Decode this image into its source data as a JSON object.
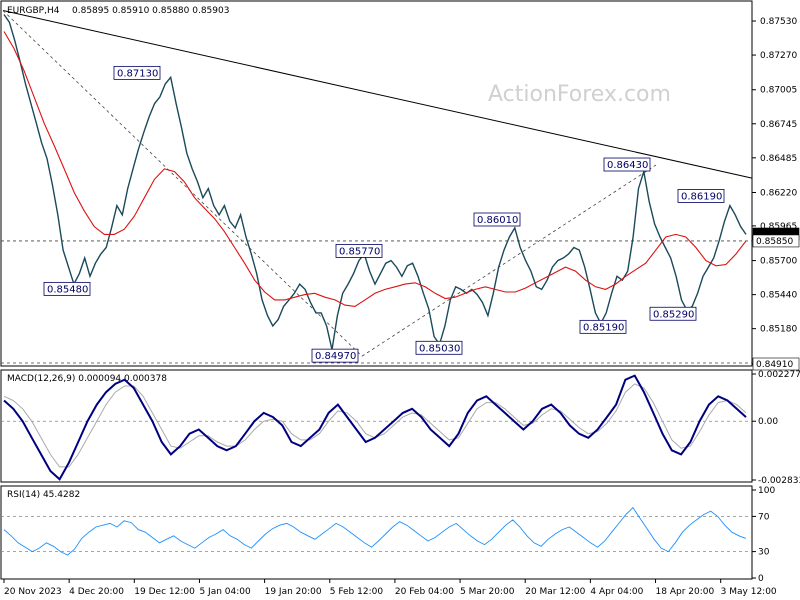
{
  "chart_data": [
    {
      "type": "line",
      "symbol": "EURGBP,H4",
      "ohlc": "0.85895 0.85910 0.85880 0.85903",
      "watermark": "ActionForex.com",
      "x_ticks": [
        "20 Nov 2023",
        "4 Dec 20:00",
        "19 Dec 12:00",
        "5 Jan 04:00",
        "19 Jan 20:00",
        "5 Feb 12:00",
        "20 Feb 04:00",
        "5 Mar 20:00",
        "20 Mar 12:00",
        "4 Apr 04:00",
        "18 Apr 20:00",
        "3 May 12:00"
      ],
      "y_ticks": [
        "0.87530",
        "0.87270",
        "0.87005",
        "0.86745",
        "0.86485",
        "0.86220",
        "0.85965",
        "0.85700",
        "0.85440",
        "0.85180",
        "0.84910"
      ],
      "ylim": [
        0.8491,
        0.8766
      ],
      "current_price": "0.85903",
      "support_level": "0.85850",
      "floor_label": "0.84910",
      "annotations": [
        {
          "label": "0.87130",
          "value": 0.8713
        },
        {
          "label": "0.85480",
          "value": 0.8548
        },
        {
          "label": "0.84970",
          "value": 0.8497
        },
        {
          "label": "0.85770",
          "value": 0.8577
        },
        {
          "label": "0.85030",
          "value": 0.8503
        },
        {
          "label": "0.86010",
          "value": 0.8601
        },
        {
          "label": "0.85190",
          "value": 0.8519
        },
        {
          "label": "0.86430",
          "value": 0.8643
        },
        {
          "label": "0.85290",
          "value": 0.8529
        },
        {
          "label": "0.86190",
          "value": 0.8619
        }
      ],
      "series": [
        {
          "name": "",
          "color": "#1a4a5a",
          "values": [
            0.8758,
            0.8752,
            0.8738,
            0.8722,
            0.8705,
            0.869,
            0.8675,
            0.866,
            0.8648,
            0.8628,
            0.8605,
            0.8578,
            0.8565,
            0.8552,
            0.856,
            0.8572,
            0.8558,
            0.8568,
            0.8575,
            0.858,
            0.8595,
            0.8612,
            0.8605,
            0.8625,
            0.864,
            0.8655,
            0.8668,
            0.868,
            0.869,
            0.8695,
            0.8705,
            0.871,
            0.869,
            0.8672,
            0.8652,
            0.864,
            0.863,
            0.8618,
            0.8625,
            0.8612,
            0.8605,
            0.8612,
            0.86,
            0.8595,
            0.8605,
            0.8588,
            0.8575,
            0.856,
            0.854,
            0.8528,
            0.852,
            0.8525,
            0.8535,
            0.854,
            0.8545,
            0.8552,
            0.8548,
            0.8538,
            0.853,
            0.853,
            0.852,
            0.8502,
            0.8528,
            0.8545,
            0.8552,
            0.856,
            0.857,
            0.8575,
            0.8562,
            0.8552,
            0.856,
            0.8568,
            0.857,
            0.8565,
            0.8558,
            0.8566,
            0.8568,
            0.8558,
            0.8545,
            0.8533,
            0.8512,
            0.8506,
            0.852,
            0.854,
            0.855,
            0.8548,
            0.8545,
            0.8548,
            0.8544,
            0.8538,
            0.8528,
            0.8545,
            0.8565,
            0.8578,
            0.8588,
            0.8595,
            0.858,
            0.857,
            0.8562,
            0.855,
            0.8548,
            0.8555,
            0.8565,
            0.857,
            0.8572,
            0.8575,
            0.858,
            0.8578,
            0.8565,
            0.8548,
            0.853,
            0.8522,
            0.853,
            0.8545,
            0.8558,
            0.8555,
            0.8562,
            0.8588,
            0.8625,
            0.8638,
            0.8615,
            0.8598,
            0.8588,
            0.858,
            0.8572,
            0.8558,
            0.854,
            0.8532,
            0.8535,
            0.8545,
            0.8558,
            0.8565,
            0.8572,
            0.8585,
            0.86,
            0.8612,
            0.8605,
            0.8596,
            0.859
          ]
        },
        {
          "name": "",
          "color": "#dd1111",
          "values": [
            0.8745,
            0.8732,
            0.8715,
            0.8695,
            0.8675,
            0.8658,
            0.864,
            0.8622,
            0.8608,
            0.8596,
            0.859,
            0.859,
            0.8594,
            0.8604,
            0.8618,
            0.8632,
            0.864,
            0.8638,
            0.863,
            0.8618,
            0.861,
            0.8602,
            0.8592,
            0.858,
            0.8568,
            0.8555,
            0.8546,
            0.854,
            0.854,
            0.8542,
            0.8544,
            0.8545,
            0.8542,
            0.854,
            0.8536,
            0.8535,
            0.854,
            0.8545,
            0.8548,
            0.855,
            0.8552,
            0.8553,
            0.855,
            0.8545,
            0.8541,
            0.8542,
            0.8545,
            0.8548,
            0.855,
            0.8548,
            0.8546,
            0.8546,
            0.8549,
            0.8553,
            0.8557,
            0.8561,
            0.8565,
            0.8562,
            0.8555,
            0.855,
            0.8548,
            0.8552,
            0.8558,
            0.8563,
            0.8568,
            0.8578,
            0.8588,
            0.859,
            0.8588,
            0.858,
            0.857,
            0.8566,
            0.8567,
            0.8575,
            0.8585
          ]
        }
      ]
    },
    {
      "type": "line",
      "title": "MACD(12,26,9) 0.000094 0.000378",
      "y_ticks": [
        "0.002277",
        "0.00",
        "-0.002833"
      ],
      "ylim": [
        -0.002833,
        0.002277
      ],
      "series": [
        {
          "name": "",
          "color": "#000080",
          "values": [
            0.001,
            0.0006,
            0.0,
            -0.0008,
            -0.0016,
            -0.0024,
            -0.0028,
            -0.002,
            -0.001,
            0.0,
            0.0008,
            0.0014,
            0.0018,
            0.002,
            0.0016,
            0.0008,
            0.0,
            -0.001,
            -0.0016,
            -0.0012,
            -0.0006,
            -0.0004,
            -0.0008,
            -0.0012,
            -0.0014,
            -0.0012,
            -0.0006,
            0.0,
            0.0004,
            0.0002,
            -0.0002,
            -0.001,
            -0.0012,
            -0.0008,
            -0.0004,
            0.0004,
            0.0008,
            0.0002,
            -0.0004,
            -0.001,
            -0.0008,
            -0.0004,
            0.0,
            0.0004,
            0.0006,
            0.0002,
            -0.0004,
            -0.0008,
            -0.0012,
            -0.0006,
            0.0004,
            0.001,
            0.0012,
            0.0008,
            0.0004,
            0.0,
            -0.0004,
            0.0,
            0.0006,
            0.0008,
            0.0004,
            -0.0002,
            -0.0006,
            -0.0008,
            -0.0004,
            0.0002,
            0.0008,
            0.002,
            0.0022,
            0.0014,
            0.0004,
            -0.0006,
            -0.0014,
            -0.0016,
            -0.001,
            0.0,
            0.0008,
            0.0012,
            0.001,
            0.0006,
            0.0002
          ]
        },
        {
          "name": "",
          "color": "#aaaaaa",
          "values": [
            0.0012,
            0.001,
            0.0006,
            0.0,
            -0.0008,
            -0.0016,
            -0.0022,
            -0.0022,
            -0.0016,
            -0.0008,
            0.0,
            0.0008,
            0.0014,
            0.0017,
            0.0017,
            0.0012,
            0.0004,
            -0.0004,
            -0.0012,
            -0.0013,
            -0.001,
            -0.0007,
            -0.0007,
            -0.001,
            -0.0012,
            -0.0012,
            -0.0009,
            -0.0004,
            0.0,
            0.0001,
            0.0,
            -0.0006,
            -0.0009,
            -0.0009,
            -0.0006,
            0.0,
            0.0005,
            0.0004,
            0.0,
            -0.0006,
            -0.0008,
            -0.0006,
            -0.0002,
            0.0002,
            0.0004,
            0.0003,
            -0.0001,
            -0.0005,
            -0.0009,
            -0.0008,
            -0.0001,
            0.0006,
            0.0009,
            0.0009,
            0.0006,
            0.0002,
            -0.0002,
            -0.0001,
            0.0003,
            0.0006,
            0.0005,
            0.0001,
            -0.0003,
            -0.0006,
            -0.0005,
            -0.0001,
            0.0005,
            0.0014,
            0.0018,
            0.0016,
            0.0009,
            0.0,
            -0.0009,
            -0.0013,
            -0.0012,
            -0.0005,
            0.0003,
            0.0009,
            0.001,
            0.0008,
            0.0004
          ]
        }
      ]
    },
    {
      "type": "line",
      "title": "RSI(14) 45.4282",
      "y_ticks": [
        "100",
        "70",
        "30",
        "0"
      ],
      "ylim": [
        0,
        100
      ],
      "levels": [
        70,
        30
      ],
      "series": [
        {
          "name": "",
          "color": "#1e90ff",
          "values": [
            55,
            48,
            40,
            35,
            30,
            34,
            40,
            36,
            30,
            26,
            33,
            45,
            52,
            58,
            60,
            62,
            58,
            65,
            63,
            55,
            52,
            46,
            40,
            44,
            48,
            42,
            38,
            34,
            40,
            46,
            50,
            55,
            48,
            44,
            38,
            34,
            42,
            50,
            56,
            60,
            62,
            58,
            52,
            48,
            44,
            50,
            56,
            62,
            58,
            52,
            46,
            40,
            35,
            42,
            50,
            58,
            64,
            60,
            54,
            48,
            42,
            46,
            52,
            58,
            62,
            55,
            48,
            42,
            38,
            44,
            52,
            60,
            66,
            58,
            48,
            40,
            36,
            44,
            50,
            55,
            58,
            52,
            46,
            40,
            35,
            42,
            52,
            62,
            72,
            80,
            68,
            56,
            44,
            34,
            30,
            40,
            52,
            60,
            66,
            72,
            76,
            70,
            60,
            52,
            48,
            45
          ]
        }
      ]
    }
  ]
}
